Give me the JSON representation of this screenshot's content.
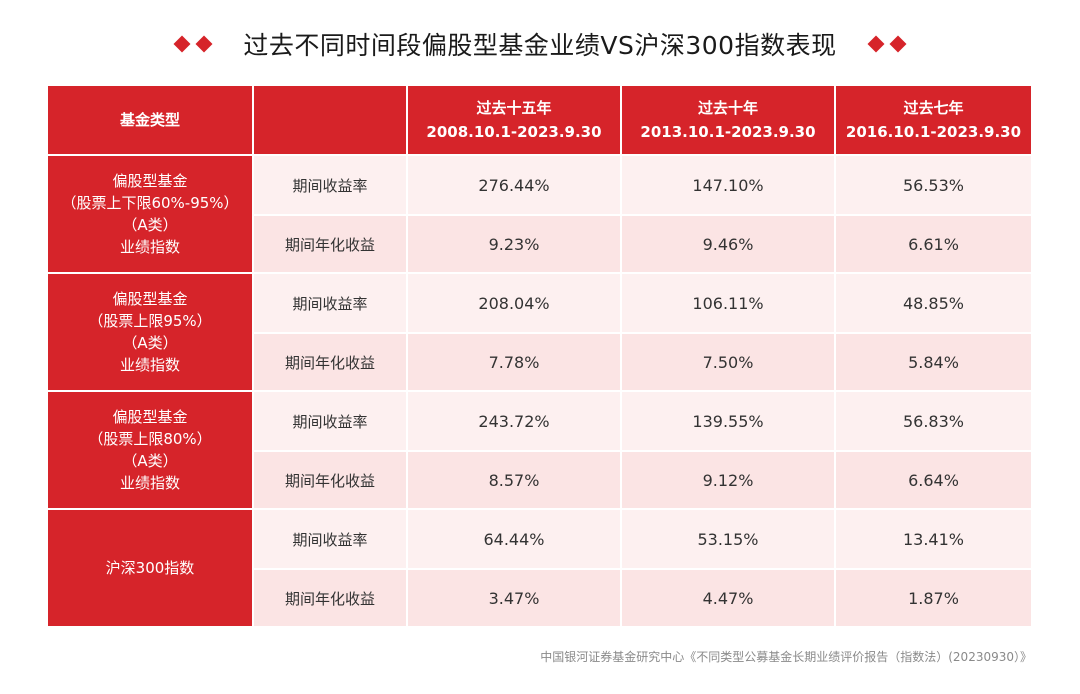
{
  "title": "过去不同时间段偏股型基金业绩VS沪深300指数表现",
  "accent_color": "#d6242a",
  "chart_data": {
    "type": "table",
    "header": {
      "category_label": "基金类型",
      "metric_label": "",
      "periods": [
        {
          "name": "过去十五年",
          "range": "2008.10.1-2023.9.30"
        },
        {
          "name": "过去十年",
          "range": "2013.10.1-2023.9.30"
        },
        {
          "name": "过去七年",
          "range": "2016.10.1-2023.9.30"
        }
      ]
    },
    "groups": [
      {
        "lines": [
          "偏股型基金",
          "（股票上下限60%-95%）",
          "（A类）",
          "业绩指数"
        ],
        "rows": [
          {
            "metric": "期间收益率",
            "values": [
              "276.44%",
              "147.10%",
              "56.53%"
            ]
          },
          {
            "metric": "期间年化收益",
            "values": [
              "9.23%",
              "9.46%",
              "6.61%"
            ]
          }
        ]
      },
      {
        "lines": [
          "偏股型基金",
          "（股票上限95%）",
          "（A类）",
          "业绩指数"
        ],
        "rows": [
          {
            "metric": "期间收益率",
            "values": [
              "208.04%",
              "106.11%",
              "48.85%"
            ]
          },
          {
            "metric": "期间年化收益",
            "values": [
              "7.78%",
              "7.50%",
              "5.84%"
            ]
          }
        ]
      },
      {
        "lines": [
          "偏股型基金",
          "（股票上限80%）",
          "（A类）",
          "业绩指数"
        ],
        "rows": [
          {
            "metric": "期间收益率",
            "values": [
              "243.72%",
              "139.55%",
              "56.83%"
            ]
          },
          {
            "metric": "期间年化收益",
            "values": [
              "8.57%",
              "9.12%",
              "6.64%"
            ]
          }
        ]
      },
      {
        "lines": [
          "沪深300指数"
        ],
        "rows": [
          {
            "metric": "期间收益率",
            "values": [
              "64.44%",
              "53.15%",
              "13.41%"
            ]
          },
          {
            "metric": "期间年化收益",
            "values": [
              "3.47%",
              "4.47%",
              "1.87%"
            ]
          }
        ]
      }
    ]
  },
  "source": "中国银河证券基金研究中心《不同类型公募基金长期业绩评价报告（指数法）(20230930）》"
}
